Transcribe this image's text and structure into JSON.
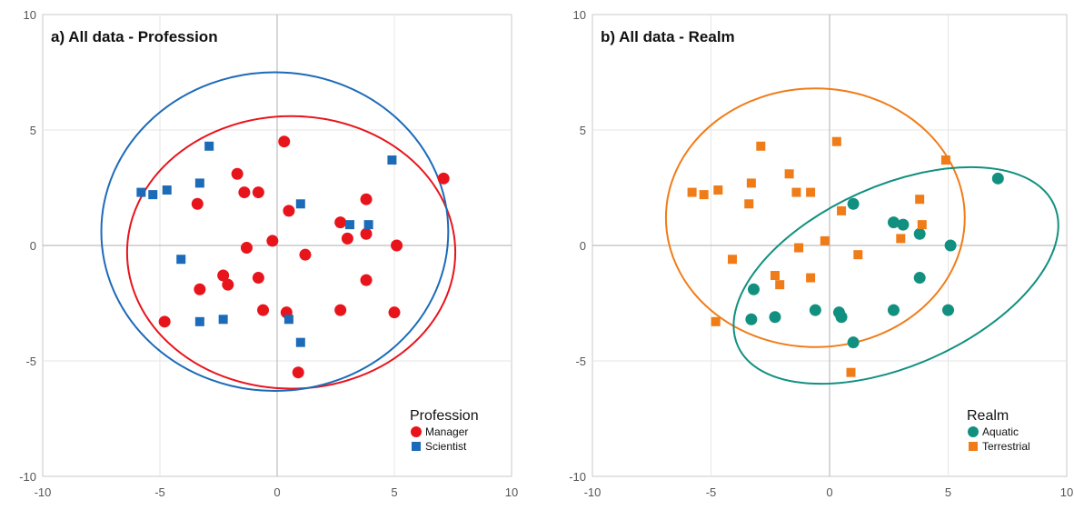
{
  "chart_data": [
    {
      "type": "scatter",
      "title": "a) All data - Profession",
      "xlim": [
        -10,
        10
      ],
      "ylim": [
        -10,
        10
      ],
      "xticks": [
        -10,
        -5,
        0,
        5,
        10
      ],
      "yticks": [
        -10,
        -5,
        0,
        5,
        10
      ],
      "grid": true,
      "legend_title": "Profession",
      "legend_position": "bottom-right",
      "series": [
        {
          "name": "Manager",
          "marker": "circle",
          "color": "#e8141c",
          "points": [
            [
              0.3,
              4.5
            ],
            [
              -1.7,
              3.1
            ],
            [
              -1.4,
              2.3
            ],
            [
              -0.8,
              2.3
            ],
            [
              -3.4,
              1.8
            ],
            [
              0.5,
              1.5
            ],
            [
              -0.2,
              0.2
            ],
            [
              -1.3,
              -0.1
            ],
            [
              1.2,
              -0.4
            ],
            [
              2.7,
              1.0
            ],
            [
              3.0,
              0.3
            ],
            [
              3.8,
              2.0
            ],
            [
              3.8,
              0.5
            ],
            [
              5.1,
              0.0
            ],
            [
              7.1,
              2.9
            ],
            [
              -2.3,
              -1.3
            ],
            [
              -2.1,
              -1.7
            ],
            [
              -0.8,
              -1.4
            ],
            [
              -3.3,
              -1.9
            ],
            [
              -0.6,
              -2.8
            ],
            [
              0.4,
              -2.9
            ],
            [
              2.7,
              -2.8
            ],
            [
              3.8,
              -1.5
            ],
            [
              5.0,
              -2.9
            ],
            [
              -4.8,
              -3.3
            ],
            [
              0.9,
              -5.5
            ]
          ]
        },
        {
          "name": "Scientist",
          "marker": "square",
          "color": "#1c6bb8",
          "points": [
            [
              -2.9,
              4.3
            ],
            [
              -5.8,
              2.3
            ],
            [
              -5.3,
              2.2
            ],
            [
              -4.7,
              2.4
            ],
            [
              -3.3,
              2.7
            ],
            [
              1.0,
              1.8
            ],
            [
              3.1,
              0.9
            ],
            [
              3.9,
              0.9
            ],
            [
              4.9,
              3.7
            ],
            [
              -4.1,
              -0.6
            ],
            [
              -2.3,
              -3.2
            ],
            [
              -3.3,
              -3.3
            ],
            [
              0.5,
              -3.2
            ],
            [
              1.0,
              -4.2
            ]
          ]
        }
      ],
      "ellipses": [
        {
          "name": "Manager",
          "color": "#e8141c",
          "cx": 0.6,
          "cy": -0.3,
          "rx": 7.0,
          "ry": 5.9,
          "rotation_deg": 0
        },
        {
          "name": "Scientist",
          "color": "#1c6bb8",
          "cx": -0.1,
          "cy": 0.6,
          "rx": 7.4,
          "ry": 6.9,
          "rotation_deg": 0
        }
      ]
    },
    {
      "type": "scatter",
      "title": "b) All data - Realm",
      "xlim": [
        -10,
        10
      ],
      "ylim": [
        -10,
        10
      ],
      "xticks": [
        -10,
        -5,
        0,
        5,
        10
      ],
      "yticks": [
        -10,
        -5,
        0,
        5,
        10
      ],
      "grid": true,
      "legend_title": "Realm",
      "legend_position": "bottom-right",
      "series": [
        {
          "name": "Aquatic",
          "marker": "circle",
          "color": "#119080",
          "points": [
            [
              1.0,
              1.8
            ],
            [
              2.7,
              1.0
            ],
            [
              3.1,
              0.9
            ],
            [
              3.8,
              0.5
            ],
            [
              5.1,
              0.0
            ],
            [
              7.1,
              2.9
            ],
            [
              -3.2,
              -1.9
            ],
            [
              -3.3,
              -3.2
            ],
            [
              -2.3,
              -3.1
            ],
            [
              -0.6,
              -2.8
            ],
            [
              0.4,
              -2.9
            ],
            [
              0.5,
              -3.1
            ],
            [
              2.7,
              -2.8
            ],
            [
              3.8,
              -1.4
            ],
            [
              5.0,
              -2.8
            ],
            [
              1.0,
              -4.2
            ]
          ]
        },
        {
          "name": "Terrestrial",
          "marker": "square",
          "color": "#f07c18",
          "points": [
            [
              -2.9,
              4.3
            ],
            [
              0.3,
              4.5
            ],
            [
              -5.8,
              2.3
            ],
            [
              -5.3,
              2.2
            ],
            [
              -4.7,
              2.4
            ],
            [
              -3.3,
              2.7
            ],
            [
              -3.4,
              1.8
            ],
            [
              -1.7,
              3.1
            ],
            [
              -1.4,
              2.3
            ],
            [
              -0.8,
              2.3
            ],
            [
              0.5,
              1.5
            ],
            [
              -0.2,
              0.2
            ],
            [
              -1.3,
              -0.1
            ],
            [
              1.2,
              -0.4
            ],
            [
              3.0,
              0.3
            ],
            [
              3.8,
              2.0
            ],
            [
              3.9,
              0.9
            ],
            [
              4.9,
              3.7
            ],
            [
              -4.1,
              -0.6
            ],
            [
              -2.3,
              -1.3
            ],
            [
              -2.1,
              -1.7
            ],
            [
              -0.8,
              -1.4
            ],
            [
              -4.8,
              -3.3
            ],
            [
              0.9,
              -5.5
            ]
          ]
        }
      ],
      "ellipses": [
        {
          "name": "Terrestrial",
          "color": "#f07c18",
          "cx": -0.6,
          "cy": 1.2,
          "rx": 6.3,
          "ry": 5.6,
          "rotation_deg": 0
        },
        {
          "name": "Aquatic",
          "color": "#119080",
          "cx": 2.8,
          "cy": -1.3,
          "rx": 7.3,
          "ry": 3.9,
          "rotation_deg": -24
        }
      ]
    }
  ]
}
